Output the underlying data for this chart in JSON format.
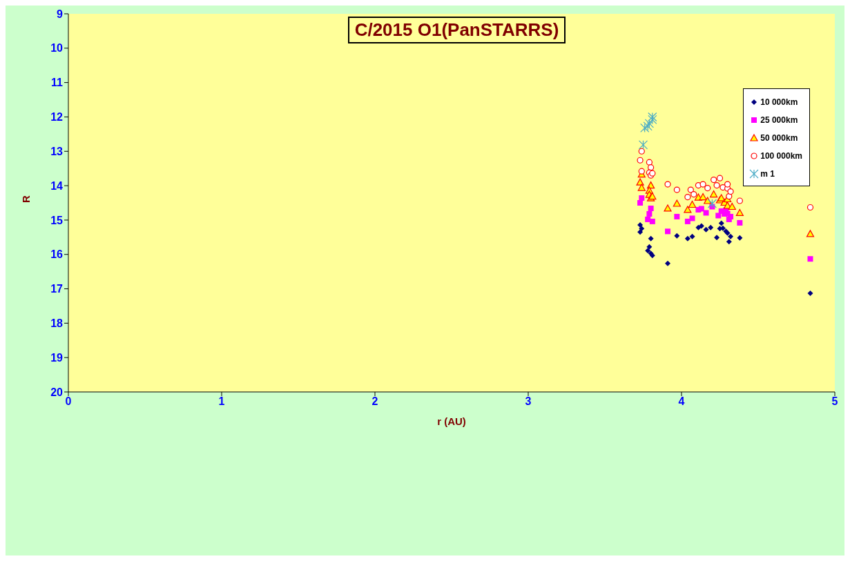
{
  "chart_data": {
    "type": "scatter",
    "title": "C/2015 O1(PanSTARRS)",
    "xlabel": "r (AU)",
    "ylabel": "R",
    "xlim": [
      0,
      5
    ],
    "xticks": [
      0,
      1,
      2,
      3,
      4,
      5
    ],
    "ylim": [
      20,
      9
    ],
    "yticks": [
      9,
      10,
      11,
      12,
      13,
      14,
      15,
      16,
      17,
      18,
      19,
      20
    ],
    "legend": "top right",
    "series": [
      {
        "name": "10 000km",
        "color": "#000080",
        "marker": "diamond",
        "x": [
          3.73,
          3.73,
          3.74,
          3.8,
          3.79,
          3.78,
          3.8,
          3.81,
          3.91,
          3.97,
          4.04,
          4.07,
          4.11,
          4.13,
          4.16,
          4.19,
          4.23,
          4.25,
          4.26,
          4.27,
          4.29,
          4.3,
          4.31,
          4.32,
          4.38,
          4.84
        ],
        "values": [
          15.35,
          15.14,
          15.25,
          15.54,
          15.78,
          15.89,
          15.97,
          16.03,
          16.26,
          15.46,
          15.54,
          15.48,
          15.22,
          15.17,
          15.28,
          15.22,
          15.51,
          15.25,
          15.09,
          15.24,
          15.33,
          15.38,
          15.63,
          15.48,
          15.52,
          17.13
        ]
      },
      {
        "name": "25 000km",
        "color": "#ff00ff",
        "marker": "square",
        "x": [
          3.73,
          3.74,
          3.8,
          3.79,
          3.78,
          3.81,
          3.91,
          3.97,
          4.04,
          4.07,
          4.11,
          4.13,
          4.16,
          4.2,
          4.24,
          4.26,
          4.28,
          4.29,
          4.3,
          4.31,
          4.32,
          4.38,
          4.84
        ],
        "values": [
          14.5,
          14.36,
          14.66,
          14.82,
          14.98,
          15.04,
          15.33,
          14.9,
          15.04,
          14.95,
          14.7,
          14.67,
          14.79,
          14.61,
          14.87,
          14.74,
          14.82,
          14.71,
          14.81,
          14.98,
          14.9,
          15.08,
          16.13
        ]
      },
      {
        "name": "50 000km",
        "color": "#ffff00",
        "marker": "triangle",
        "x": [
          3.73,
          3.74,
          3.74,
          3.8,
          3.79,
          3.79,
          3.8,
          3.81,
          3.91,
          3.97,
          4.04,
          4.07,
          4.11,
          4.14,
          4.17,
          4.21,
          4.25,
          4.26,
          4.28,
          4.3,
          4.3,
          4.33,
          4.38,
          4.84
        ],
        "values": [
          13.9,
          14.06,
          13.67,
          13.99,
          14.14,
          14.26,
          14.36,
          14.31,
          14.66,
          14.52,
          14.7,
          14.55,
          14.34,
          14.33,
          14.44,
          14.25,
          14.42,
          14.36,
          14.49,
          14.39,
          14.58,
          14.61,
          14.79,
          15.4
        ]
      },
      {
        "name": "100 000km",
        "color": "#ffffff",
        "marker": "circle",
        "x": [
          3.73,
          3.74,
          3.74,
          3.79,
          3.8,
          3.79,
          3.8,
          3.81,
          3.91,
          3.97,
          4.04,
          4.06,
          4.08,
          4.11,
          4.14,
          4.17,
          4.21,
          4.23,
          4.25,
          4.27,
          4.3,
          4.3,
          4.31,
          4.32,
          4.38,
          4.84
        ],
        "values": [
          13.26,
          13.0,
          13.58,
          13.32,
          13.47,
          13.62,
          13.7,
          13.64,
          13.96,
          14.12,
          14.33,
          14.12,
          14.25,
          13.99,
          13.96,
          14.07,
          13.83,
          13.99,
          13.78,
          14.05,
          14.08,
          13.96,
          14.31,
          14.17,
          14.44,
          14.63
        ]
      },
      {
        "name": "m 1",
        "color": "#4bacc6",
        "marker": "cross",
        "x": [
          3.75,
          3.76,
          3.78,
          3.79,
          3.81,
          3.81,
          4.2
        ],
        "values": [
          12.81,
          12.32,
          12.27,
          12.19,
          12.08,
          12.0,
          14.52
        ]
      }
    ]
  }
}
